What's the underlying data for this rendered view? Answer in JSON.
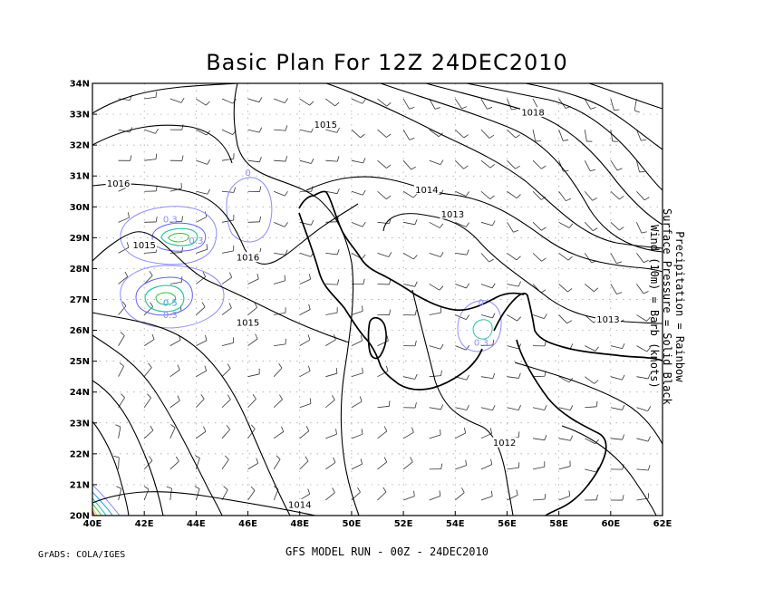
{
  "title": "Basic Plan For 12Z 24DEC2010",
  "credit": "GrADS: COLA/IGES",
  "footer": "GFS MODEL RUN - 00Z -  24DEC2010",
  "legend": {
    "line1": "Precipitation = Rainbow",
    "line2": "Surface Pressure = Solid Black",
    "line3": "Wind (10m) = Barb (knots)"
  },
  "chart_data": {
    "type": "map",
    "x_ticks": [
      "40E",
      "42E",
      "44E",
      "46E",
      "48E",
      "50E",
      "52E",
      "54E",
      "56E",
      "58E",
      "60E",
      "62E"
    ],
    "y_ticks": [
      "20N",
      "21N",
      "22N",
      "23N",
      "24N",
      "25N",
      "26N",
      "27N",
      "28N",
      "29N",
      "30N",
      "31N",
      "32N",
      "33N",
      "34N"
    ],
    "xlim": [
      40,
      62
    ],
    "ylim": [
      20,
      34
    ],
    "grid": true,
    "pressure_labels": [
      {
        "text": "1016",
        "lon": 41.0,
        "lat": 30.7
      },
      {
        "text": "1015",
        "lon": 42.0,
        "lat": 28.7
      },
      {
        "text": "1016",
        "lon": 46.0,
        "lat": 28.3
      },
      {
        "text": "1015",
        "lon": 49.0,
        "lat": 32.6
      },
      {
        "text": "1015",
        "lon": 46.0,
        "lat": 26.2
      },
      {
        "text": "1014",
        "lon": 52.9,
        "lat": 30.5
      },
      {
        "text": "1013",
        "lon": 53.9,
        "lat": 29.7
      },
      {
        "text": "1018",
        "lon": 57.0,
        "lat": 33.0
      },
      {
        "text": "1013",
        "lon": 59.9,
        "lat": 26.3
      },
      {
        "text": "1012",
        "lon": 55.9,
        "lat": 22.3
      },
      {
        "text": "1014",
        "lon": 48.0,
        "lat": 20.3
      }
    ],
    "precip_labels": [
      {
        "text": "0",
        "lon": 46.0,
        "lat": 31.0,
        "color": "#8c8cff"
      },
      {
        "text": "0.3",
        "lon": 43.0,
        "lat": 29.5,
        "color": "#8c8cff"
      },
      {
        "text": "0.3",
        "lon": 44.0,
        "lat": 28.8,
        "color": "#8c8cff"
      },
      {
        "text": "0.3",
        "lon": 43.0,
        "lat": 26.4,
        "color": "#8c8cff"
      },
      {
        "text": "0.5",
        "lon": 43.0,
        "lat": 26.8,
        "color": "#2a9cff"
      },
      {
        "text": "0",
        "lon": 55.0,
        "lat": 26.8,
        "color": "#8c8cff"
      },
      {
        "text": "0.3",
        "lon": 55.0,
        "lat": 25.5,
        "color": "#8c8cff"
      }
    ]
  }
}
